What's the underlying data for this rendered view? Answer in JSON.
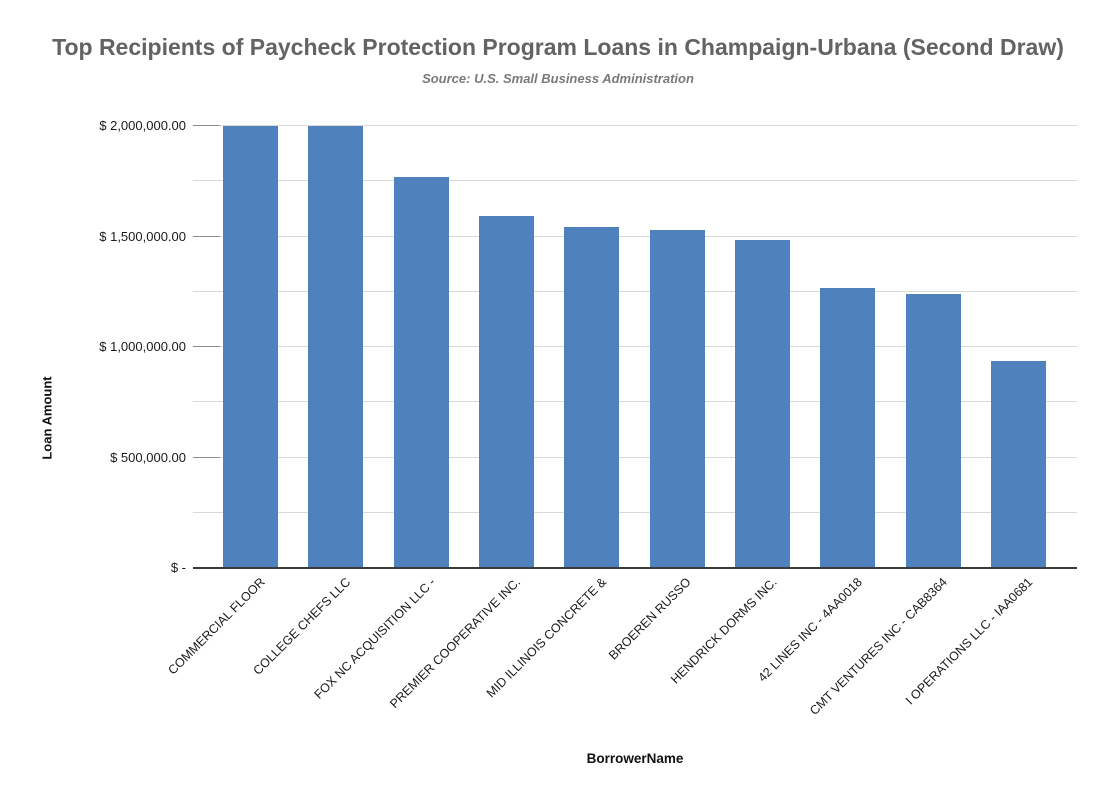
{
  "chart_data": {
    "type": "bar",
    "title": "Top Recipients of Paycheck Protection Program Loans in Champaign-Urbana (Second Draw)",
    "subtitle": "Source: U.S. Small Business Administration",
    "xlabel": "BorrowerName",
    "ylabel": "Loan Amount",
    "categories": [
      "COMMERCIAL FLOOR",
      "COLLEGE CHEFS LLC",
      "FOX NC ACQUISITION LLC -",
      "PREMIER COOPERATIVE INC.",
      "MID ILLINOIS CONCRETE &",
      "BROEREN RUSSO",
      "HENDRICK DORMS INC.",
      "42 LINES INC - 4AA0018",
      "CMT VENTURES INC - CAB8364",
      "I OPERATIONS LLC - IAA0681"
    ],
    "values": [
      2000000,
      2000000,
      1770000,
      1595000,
      1545000,
      1530000,
      1485000,
      1265000,
      1240000,
      935000
    ],
    "ylim": [
      0,
      2000000
    ],
    "y_gridline_interval": 250000,
    "y_label_interval": 500000,
    "y_tick_labels": [
      {
        "value": 0,
        "label": "$ -"
      },
      {
        "value": 500000,
        "label": "$ 500,000.00"
      },
      {
        "value": 1000000,
        "label": "$ 1,000,000.00"
      },
      {
        "value": 1500000,
        "label": "$ 1,500,000.00"
      },
      {
        "value": 2000000,
        "label": "$ 2,000,000.00"
      }
    ],
    "grid": "on",
    "legend_position": "none",
    "bar_color": "#4F81BD",
    "gridline_color": "#D9D9D9",
    "axis_line_color": "#3A3A3A",
    "title_color": "#636363",
    "subtitle_color": "#7A7A7A"
  }
}
